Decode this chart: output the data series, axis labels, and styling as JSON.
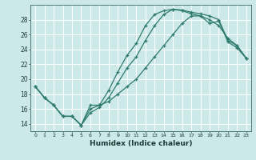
{
  "xlabel": "Humidex (Indice chaleur)",
  "bg_color": "#cce8e8",
  "grid_color": "#b8d8d8",
  "line_color": "#2e7b6e",
  "xlim": [
    -0.5,
    23.5
  ],
  "ylim": [
    13.0,
    30.0
  ],
  "yticks": [
    14,
    16,
    18,
    20,
    22,
    24,
    26,
    28
  ],
  "xticks": [
    0,
    1,
    2,
    3,
    4,
    5,
    6,
    7,
    8,
    9,
    10,
    11,
    12,
    13,
    14,
    15,
    16,
    17,
    18,
    19,
    20,
    21,
    22,
    23
  ],
  "y_top": [
    19.0,
    17.5,
    16.5,
    15.0,
    15.0,
    13.8,
    16.5,
    16.5,
    18.5,
    21.0,
    23.2,
    24.8,
    27.2,
    28.7,
    29.2,
    29.4,
    29.3,
    29.0,
    28.8,
    28.5,
    28.0,
    25.2,
    24.5,
    22.8
  ],
  "y_mid": [
    19.0,
    17.5,
    16.5,
    15.0,
    15.0,
    13.8,
    15.5,
    16.2,
    17.5,
    19.5,
    21.5,
    23.0,
    25.2,
    27.2,
    28.7,
    29.4,
    29.2,
    28.8,
    28.5,
    27.5,
    27.8,
    25.0,
    24.2,
    22.8
  ],
  "y_bot": [
    19.0,
    17.5,
    16.5,
    15.0,
    15.0,
    13.8,
    16.0,
    16.5,
    17.0,
    18.0,
    19.0,
    20.0,
    21.5,
    23.0,
    24.5,
    26.0,
    27.5,
    28.5,
    28.5,
    28.0,
    27.2,
    25.5,
    24.5,
    22.8
  ]
}
